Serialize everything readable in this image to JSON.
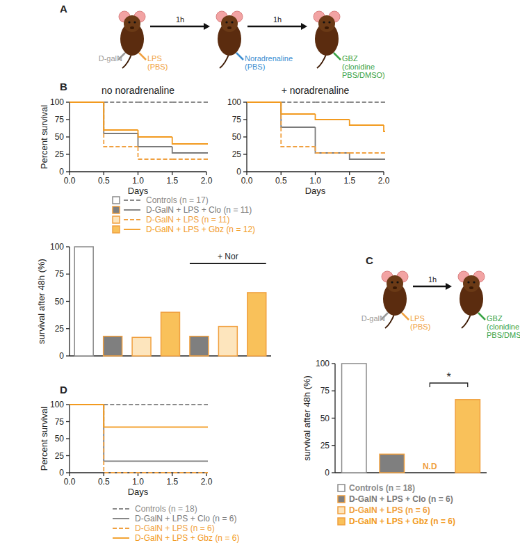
{
  "panel_labels": [
    "A",
    "B",
    "C",
    "D"
  ],
  "diagram_a": {
    "arrows": [
      "1h",
      "1h"
    ],
    "mice": [
      {
        "injections": [
          {
            "side": "left",
            "color": "#9a9a9a",
            "texts": [
              "D-galN"
            ]
          },
          {
            "side": "right",
            "color": "#f0a040",
            "texts": [
              "LPS",
              "(PBS)"
            ]
          }
        ]
      },
      {
        "injections": [
          {
            "side": "right",
            "color": "#3d8fd1",
            "texts": [
              "Noradrenaline",
              "(PBS)"
            ]
          }
        ]
      },
      {
        "injections": [
          {
            "side": "right",
            "color": "#3aa346",
            "texts": [
              "GBZ",
              "(clonidine",
              "PBS/DMSO)"
            ]
          }
        ]
      }
    ]
  },
  "diagram_c": {
    "arrows": [
      "1h"
    ],
    "mice": [
      {
        "injections": [
          {
            "side": "left",
            "color": "#9a9a9a",
            "texts": [
              "D-galN"
            ]
          },
          {
            "side": "right",
            "color": "#f0a040",
            "texts": [
              "LPS",
              "(PBS)"
            ]
          }
        ]
      },
      {
        "injections": [
          {
            "side": "right",
            "color": "#3aa346",
            "texts": [
              "GBZ",
              "(clonidine",
              "PBS/DMSO)"
            ]
          }
        ]
      }
    ]
  },
  "chart_data": [
    {
      "type": "step",
      "title": "no noradrenaline",
      "xlabel": "Days",
      "ylabel": "Percent survival",
      "x": [
        0,
        0.5,
        1,
        1.5,
        2
      ],
      "xlim": [
        0,
        2
      ],
      "xticks": [
        {
          "value": 0,
          "label": "0.0"
        },
        0.5,
        {
          "value": 1,
          "label": "1.0"
        },
        1.5,
        {
          "value": 2,
          "label": "2.0"
        }
      ],
      "ylim": [
        0,
        100
      ],
      "yticks": [
        0,
        25,
        50,
        75,
        100
      ],
      "legend": "bottom",
      "series": [
        {
          "name": "Controls (n = 17)",
          "color": "#8a8a8a",
          "line_style": "dashed",
          "values": [
            100,
            100,
            100,
            100,
            100
          ]
        },
        {
          "name": "D-GalN + LPS + Clo (n = 11)",
          "color": "#7a7a7a",
          "line_style": "solid",
          "values": [
            100,
            55,
            36,
            27,
            27
          ]
        },
        {
          "name": "D-GalN + LPS (n = 11)",
          "color": "#f0a040",
          "line_style": "dashed",
          "values": [
            100,
            36,
            18,
            18,
            18
          ]
        },
        {
          "name": "D-GalN + LPS + Gbz (n = 12)",
          "color": "#f29a1f",
          "line_style": "solid",
          "values": [
            100,
            60,
            50,
            40,
            40
          ]
        }
      ]
    },
    {
      "type": "step",
      "title": "+ noradrenaline",
      "xlabel": "Days",
      "x": [
        0,
        0.5,
        1,
        1.5,
        2
      ],
      "xlim": [
        0,
        2
      ],
      "xticks": [
        {
          "value": 0,
          "label": "0.0"
        },
        0.5,
        {
          "value": 1,
          "label": "1.0"
        },
        1.5,
        {
          "value": 2,
          "label": "2.0"
        }
      ],
      "ylim": [
        0,
        100
      ],
      "yticks": [
        0,
        25,
        50,
        75,
        100
      ],
      "series": [
        {
          "name": "Controls (n = 17)",
          "color": "#8a8a8a",
          "line_style": "dashed",
          "values": [
            100,
            100,
            100,
            100,
            100
          ]
        },
        {
          "name": "D-GalN + LPS + Clo (n = 11)",
          "color": "#7a7a7a",
          "line_style": "solid",
          "values": [
            100,
            64,
            27,
            18,
            18
          ]
        },
        {
          "name": "D-GalN + LPS (n = 11)",
          "color": "#f0a040",
          "line_style": "dashed",
          "values": [
            100,
            36,
            27,
            27,
            27
          ]
        },
        {
          "name": "D-GalN + LPS + Gbz (n = 12)",
          "color": "#f29a1f",
          "line_style": "solid",
          "values": [
            100,
            83,
            75,
            67,
            58
          ]
        }
      ]
    },
    {
      "type": "bar",
      "ylabel": "survival after 48h (%)",
      "categories": [
        null,
        null,
        null,
        null,
        null,
        null,
        null
      ],
      "values": [
        100,
        18,
        17,
        40,
        18,
        27,
        58
      ],
      "colors": [
        "#ffffff",
        "#7f7f7f",
        "#fde5bd",
        "#f9c15a",
        "#7f7f7f",
        "#fde5bd",
        "#f9c15a"
      ],
      "ylim": [
        0,
        100
      ],
      "yticks": [
        0,
        25,
        50,
        75,
        100
      ],
      "annotations": [
        {
          "text": "+ Nor",
          "span": [
            4,
            6
          ]
        }
      ]
    },
    {
      "type": "bar",
      "ylabel": "survival after 48h (%)",
      "categories": [
        null,
        null,
        null,
        null
      ],
      "values": [
        100,
        17,
        0,
        67
      ],
      "colors": [
        "#ffffff",
        "#7f7f7f",
        "#fde5bd",
        "#f9c15a"
      ],
      "ylim": [
        0,
        100
      ],
      "yticks": [
        0,
        25,
        50,
        75,
        100
      ],
      "legend": "bottom",
      "annotations": [
        {
          "text": "N.D",
          "at": 2
        },
        {
          "text": "*",
          "span": [
            2,
            3
          ]
        }
      ]
    },
    {
      "type": "step",
      "xlabel": "Days",
      "ylabel": "Percent survival",
      "x": [
        0,
        0.5,
        2
      ],
      "xlim": [
        0,
        2
      ],
      "xticks": [
        {
          "value": 0,
          "label": "0.0"
        },
        0.5,
        {
          "value": 1,
          "label": "1.0"
        },
        1.5,
        {
          "value": 2,
          "label": "2.0"
        }
      ],
      "ylim": [
        0,
        100
      ],
      "yticks": [
        0,
        25,
        50,
        75,
        100
      ],
      "legend": "bottom",
      "series": [
        {
          "name": "Controls (n = 18)",
          "color": "#8a8a8a",
          "line_style": "dashed",
          "values": [
            100,
            100,
            100
          ]
        },
        {
          "name": "D-GalN + LPS + Clo (n = 6)",
          "color": "#7a7a7a",
          "line_style": "solid",
          "values": [
            100,
            17,
            17
          ]
        },
        {
          "name": "D-GalN + LPS (n = 6)",
          "color": "#f0a040",
          "line_style": "dashed",
          "values": [
            100,
            0,
            0
          ]
        },
        {
          "name": "D-GalN + LPS + Gbz (n = 6)",
          "color": "#f29a1f",
          "line_style": "solid",
          "values": [
            100,
            67,
            67
          ]
        }
      ]
    }
  ]
}
